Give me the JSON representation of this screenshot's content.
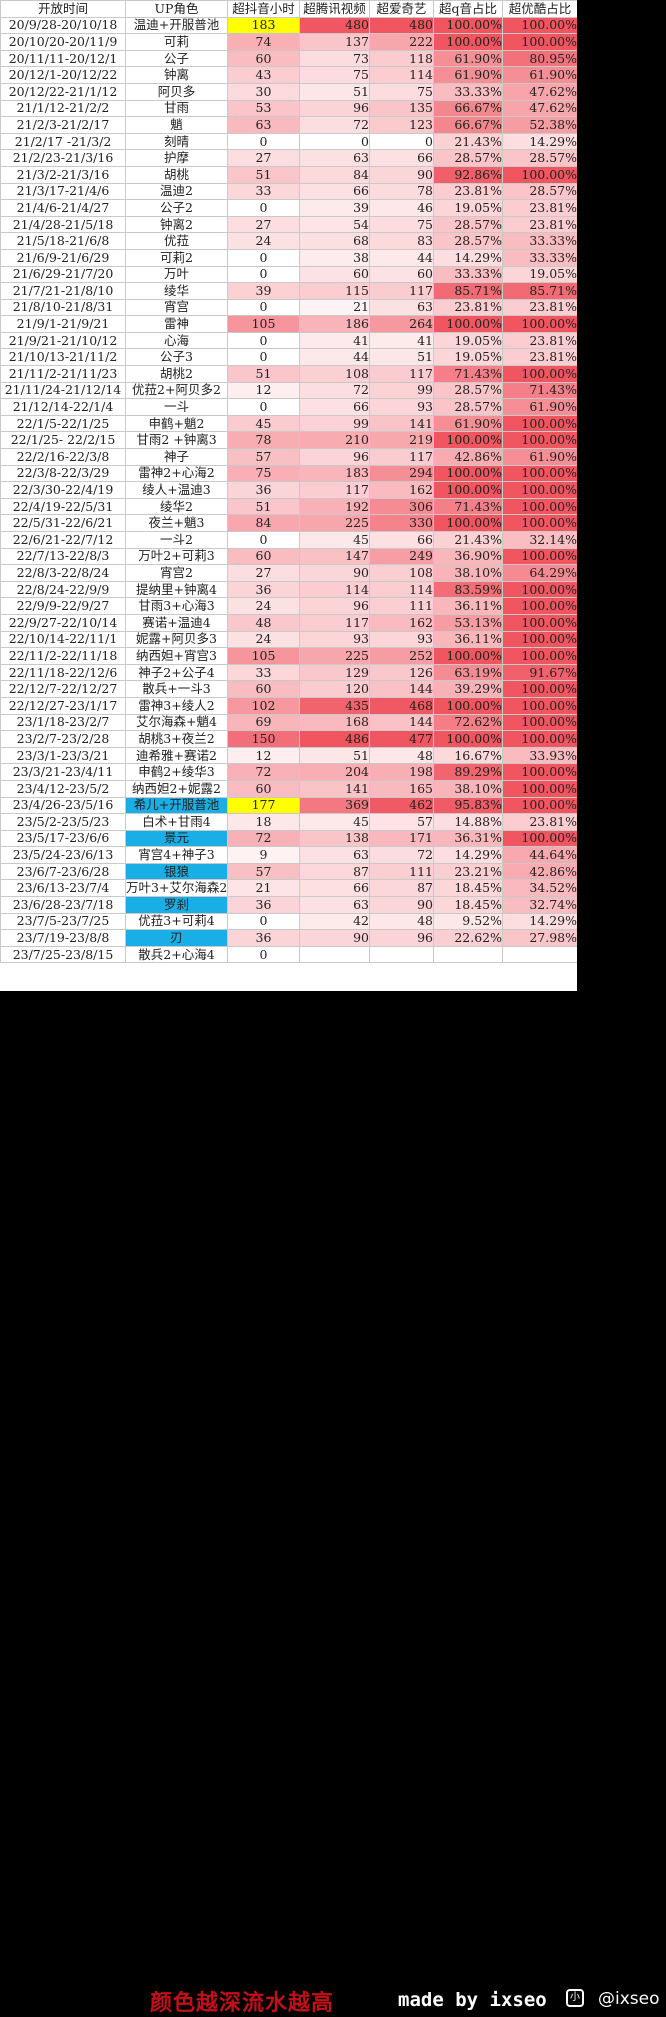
{
  "headers": [
    "开放时间",
    "UP角色",
    "超抖音小时",
    "超腾讯视频",
    "超爱奇艺",
    "超q音占比",
    "超优酷占比"
  ],
  "colors": {
    "max": "#f05560",
    "mid": "#f7b9bc",
    "light": "#fde3e3",
    "zero": "#ffffff",
    "yellow": "#ffff00",
    "blue": "#1aaee6"
  },
  "rows": [
    [
      "20/9/28-20/10/18",
      "温迪+开服普池",
      "183",
      "480",
      "480",
      "100.00%",
      "100.00%"
    ],
    [
      "20/10/20-20/11/9",
      "可莉",
      "74",
      "137",
      "222",
      "100.00%",
      "100.00%"
    ],
    [
      "20/11/11-20/12/1",
      "公子",
      "60",
      "73",
      "118",
      "61.90%",
      "80.95%"
    ],
    [
      "20/12/1-20/12/22",
      "钟离",
      "43",
      "75",
      "114",
      "61.90%",
      "61.90%"
    ],
    [
      "20/12/22-21/1/12",
      "阿贝多",
      "30",
      "51",
      "75",
      "33.33%",
      "47.62%"
    ],
    [
      "21/1/12-21/2/2",
      "甘雨",
      "53",
      "96",
      "135",
      "66.67%",
      "47.62%"
    ],
    [
      "21/2/3-21/2/17",
      "魈",
      "63",
      "72",
      "123",
      "66.67%",
      "52.38%"
    ],
    [
      "21/2/17 -21/3/2",
      "刻晴",
      "0",
      "0",
      "0",
      "21.43%",
      "14.29%"
    ],
    [
      "21/2/23-21/3/16",
      "护摩",
      "27",
      "63",
      "66",
      "28.57%",
      "28.57%"
    ],
    [
      "21/3/2-21/3/16",
      "胡桃",
      "51",
      "84",
      "90",
      "92.86%",
      "100.00%"
    ],
    [
      "21/3/17-21/4/6",
      "温迪2",
      "33",
      "66",
      "78",
      "23.81%",
      "28.57%"
    ],
    [
      "21/4/6-21/4/27",
      "公子2",
      "0",
      "39",
      "46",
      "19.05%",
      "23.81%"
    ],
    [
      "21/4/28-21/5/18",
      "钟离2",
      "27",
      "54",
      "75",
      "28.57%",
      "23.81%"
    ],
    [
      "21/5/18-21/6/8",
      "优菈",
      "24",
      "68",
      "83",
      "28.57%",
      "33.33%"
    ],
    [
      "21/6/9-21/6/29",
      "可莉2",
      "0",
      "38",
      "44",
      "14.29%",
      "33.33%"
    ],
    [
      "21/6/29-21/7/20",
      "万叶",
      "0",
      "60",
      "60",
      "33.33%",
      "19.05%"
    ],
    [
      "21/7/21-21/8/10",
      "绫华",
      "39",
      "115",
      "117",
      "85.71%",
      "85.71%"
    ],
    [
      "21/8/10-21/8/31",
      "宵宫",
      "0",
      "21",
      "63",
      "23.81%",
      "23.81%"
    ],
    [
      "21/9/1-21/9/21",
      "雷神",
      "105",
      "186",
      "264",
      "100.00%",
      "100.00%"
    ],
    [
      "21/9/21-21/10/12",
      "心海",
      "0",
      "41",
      "41",
      "19.05%",
      "23.81%"
    ],
    [
      "21/10/13-21/11/2",
      "公子3",
      "0",
      "44",
      "51",
      "19.05%",
      "23.81%"
    ],
    [
      "21/11/2-21/11/23",
      "胡桃2",
      "51",
      "108",
      "117",
      "71.43%",
      "100.00%"
    ],
    [
      "21/11/24-21/12/14",
      "优菈2+阿贝多2",
      "12",
      "72",
      "99",
      "28.57%",
      "71.43%"
    ],
    [
      "21/12/14-22/1/4",
      "一斗",
      "0",
      "66",
      "93",
      "28.57%",
      "61.90%"
    ],
    [
      "22/1/5-22/1/25",
      "申鹤+魈2",
      "45",
      "99",
      "141",
      "61.90%",
      "100.00%"
    ],
    [
      "22/1/25- 22/2/15",
      "甘雨2 +钟离3",
      "78",
      "210",
      "219",
      "100.00%",
      "100.00%"
    ],
    [
      "22/2/16-22/3/8",
      "神子",
      "57",
      "96",
      "117",
      "42.86%",
      "61.90%"
    ],
    [
      "22/3/8-22/3/29",
      "雷神2+心海2",
      "75",
      "183",
      "294",
      "100.00%",
      "100.00%"
    ],
    [
      "22/3/30-22/4/19",
      "绫人+温迪3",
      "36",
      "117",
      "162",
      "100.00%",
      "100.00%"
    ],
    [
      "22/4/19-22/5/31",
      "绫华2",
      "51",
      "192",
      "306",
      "71.43%",
      "100.00%"
    ],
    [
      "22/5/31-22/6/21",
      "夜兰+魈3",
      "84",
      "225",
      "330",
      "100.00%",
      "100.00%"
    ],
    [
      "22/6/21-22/7/12",
      "一斗2",
      "0",
      "45",
      "66",
      "21.43%",
      "32.14%"
    ],
    [
      "22/7/13-22/8/3",
      "万叶2+可莉3",
      "60",
      "147",
      "249",
      "36.90%",
      "100.00%"
    ],
    [
      "22/8/3-22/8/24",
      "宵宫2",
      "27",
      "90",
      "108",
      "38.10%",
      "64.29%"
    ],
    [
      "22/8/24-22/9/9",
      "提纳里+钟离4",
      "36",
      "114",
      "114",
      "83.59%",
      "100.00%"
    ],
    [
      "22/9/9-22/9/27",
      "甘雨3+心海3",
      "24",
      "96",
      "111",
      "36.11%",
      "100.00%"
    ],
    [
      "22/9/27-22/10/14",
      "赛诺+温迪4",
      "48",
      "117",
      "162",
      "53.13%",
      "100.00%"
    ],
    [
      "22/10/14-22/11/1",
      "妮露+阿贝多3",
      "24",
      "93",
      "93",
      "36.11%",
      "100.00%"
    ],
    [
      "22/11/2-22/11/18",
      "纳西妲+宵宫3",
      "105",
      "225",
      "252",
      "100.00%",
      "100.00%"
    ],
    [
      "22/11/18-22/12/6",
      "神子2+公子4",
      "33",
      "129",
      "126",
      "63.19%",
      "91.67%"
    ],
    [
      "22/12/7-22/12/27",
      "散兵+一斗3",
      "60",
      "120",
      "144",
      "39.29%",
      "100.00%"
    ],
    [
      "22/12/27-23/1/17",
      "雷神3+绫人2",
      "102",
      "435",
      "468",
      "100.00%",
      "100.00%"
    ],
    [
      "23/1/18-23/2/7",
      "艾尔海森+魈4",
      "69",
      "168",
      "144",
      "72.62%",
      "100.00%"
    ],
    [
      "23/2/7-23/2/28",
      "胡桃3+夜兰2",
      "150",
      "486",
      "477",
      "100.00%",
      "100.00%"
    ],
    [
      "23/3/1-23/3/21",
      "迪希雅+赛诺2",
      "12",
      "51",
      "48",
      "16.67%",
      "33.93%"
    ],
    [
      "23/3/21-23/4/11",
      "申鹤2+绫华3",
      "72",
      "204",
      "198",
      "89.29%",
      "100.00%"
    ],
    [
      "23/4/12-23/5/2",
      "纳西妲2+妮露2",
      "60",
      "141",
      "165",
      "38.10%",
      "100.00%"
    ],
    [
      "23/4/26-23/5/16",
      "希儿+开服普池",
      "177",
      "369",
      "462",
      "95.83%",
      "100.00%"
    ],
    [
      "23/5/2-23/5/23",
      "白术+甘雨4",
      "18",
      "45",
      "57",
      "14.88%",
      "23.81%"
    ],
    [
      "23/5/17-23/6/6",
      "景元",
      "72",
      "138",
      "171",
      "36.31%",
      "100.00%"
    ],
    [
      "23/5/24-23/6/13",
      "宵宫4+神子3",
      "9",
      "63",
      "72",
      "14.29%",
      "44.64%"
    ],
    [
      "23/6/7-23/6/28",
      "银狼",
      "57",
      "87",
      "111",
      "23.21%",
      "42.86%"
    ],
    [
      "23/6/13-23/7/4",
      "万叶3+艾尔海森2",
      "21",
      "66",
      "87",
      "18.45%",
      "34.52%"
    ],
    [
      "23/6/28-23/7/18",
      "罗刹",
      "36",
      "63",
      "90",
      "18.45%",
      "32.74%"
    ],
    [
      "23/7/5-23/7/25",
      "优菈3+可莉4",
      "0",
      "42",
      "48",
      "9.52%",
      "14.29%"
    ],
    [
      "23/7/19-23/8/8",
      "刃",
      "36",
      "90",
      "96",
      "22.62%",
      "27.98%"
    ],
    [
      "23/7/25-23/8/15",
      "散兵2+心海4",
      "0",
      "",
      "",
      "",
      ""
    ]
  ],
  "blue_rows": [
    47,
    49,
    51,
    53,
    55
  ],
  "yellow_cells": [
    [
      0,
      2
    ],
    [
      47,
      2
    ]
  ],
  "footer": {
    "legend": "颜色越深流水越高",
    "made_by": "made by ixseo",
    "wm_icon": "小",
    "watermark": "@ixseo"
  }
}
